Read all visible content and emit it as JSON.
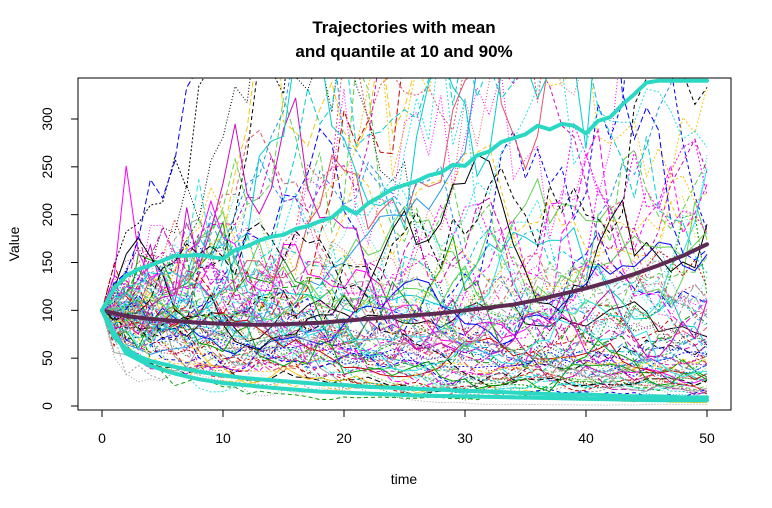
{
  "chart_data": {
    "type": "line",
    "title_line1": "Trajectories with mean",
    "title_line2": "and quantile at 10 and 90%",
    "xlabel": "time",
    "ylabel": "Value",
    "xlim": [
      0,
      50
    ],
    "ylim": [
      0,
      340
    ],
    "x_ticks": [
      0,
      10,
      20,
      30,
      40,
      50
    ],
    "y_ticks": [
      0,
      50,
      100,
      150,
      200,
      250,
      300
    ],
    "grid": false,
    "legend": "none",
    "trajectory_count": 100,
    "trajectory_start": 100,
    "trajectory_palette": [
      "#000000",
      "#DF536B",
      "#61D04F",
      "#2297E6",
      "#28E2E5",
      "#CD0BBC",
      "#F5C710",
      "#9E9E9E",
      "#0000FF",
      "#FF00FF",
      "#00CDCD",
      "#CD0000",
      "#00A000"
    ],
    "series": [
      {
        "role": "mean",
        "color": "#5C2A52",
        "x": [
          0,
          2,
          4,
          6,
          8,
          10,
          12,
          14,
          16,
          18,
          20,
          22,
          24,
          26,
          28,
          30,
          32,
          34,
          36,
          38,
          40,
          42,
          44,
          46,
          48,
          50
        ],
        "values": [
          100,
          94,
          91,
          89,
          87,
          86,
          85,
          85,
          86,
          87,
          89,
          91,
          93,
          95,
          97,
          100,
          103,
          106,
          111,
          117,
          123,
          130,
          138,
          147,
          157,
          169
        ]
      },
      {
        "role": "quantile_90",
        "color": "#2AD8C4",
        "x": [
          0,
          1,
          2,
          3,
          4,
          5,
          6,
          7,
          8,
          9,
          10,
          11,
          12,
          13,
          14,
          15,
          16,
          17,
          18,
          19,
          20,
          21,
          22,
          23,
          24,
          25,
          26,
          27,
          28,
          29,
          30,
          31,
          32,
          33,
          34,
          35,
          36,
          37,
          38,
          39,
          40,
          41,
          42,
          43,
          44,
          45,
          46,
          47,
          48,
          49,
          50
        ],
        "values": [
          100,
          123,
          136,
          143,
          147,
          152,
          157,
          157,
          158,
          156,
          154,
          163,
          167,
          173,
          177,
          179,
          185,
          188,
          193,
          197,
          208,
          201,
          212,
          219,
          227,
          231,
          235,
          241,
          244,
          252,
          251,
          262,
          266,
          276,
          280,
          284,
          293,
          289,
          295,
          293,
          285,
          298,
          302,
          315,
          326,
          338,
          340,
          340,
          340,
          340,
          340
        ]
      },
      {
        "role": "quantile_10",
        "color": "#2AD8C4",
        "x": [
          0,
          1,
          2,
          3,
          4,
          6,
          8,
          10,
          12,
          14,
          16,
          18,
          20,
          22,
          24,
          26,
          28,
          30,
          32,
          34,
          36,
          38,
          40,
          42,
          44,
          46,
          48,
          50
        ],
        "values": [
          100,
          72,
          60,
          52,
          47,
          41,
          36,
          32,
          29,
          27,
          25,
          23,
          22,
          20,
          19,
          18,
          17,
          16,
          15,
          14,
          13,
          12,
          12,
          11,
          10,
          10,
          9,
          9
        ]
      },
      {
        "role": "quantile_10_lower",
        "color": "#2AD8C4",
        "x": [
          0,
          2,
          4,
          6,
          8,
          10,
          14,
          18,
          22,
          26,
          30,
          34,
          38,
          42,
          46,
          50
        ],
        "values": [
          100,
          55,
          42,
          34,
          28,
          24,
          19,
          15,
          13,
          11,
          10,
          9,
          8,
          7,
          6,
          6
        ]
      }
    ]
  }
}
